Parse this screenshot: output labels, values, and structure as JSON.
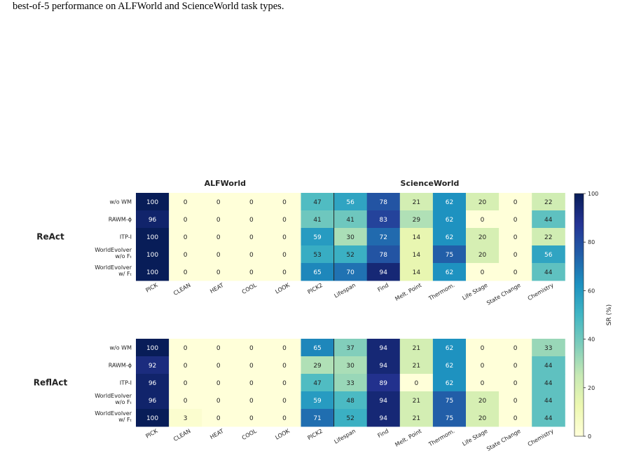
{
  "caption": {
    "text": "best-of-5 performance on ALFWorld and ScienceWorld task types."
  },
  "colors": {
    "colormap": "YlGnBu",
    "stops": [
      "#ffffd9",
      "#edf8b1",
      "#c7e9b4",
      "#7fcdbb",
      "#41b6c4",
      "#1d91c0",
      "#225ea8",
      "#253494",
      "#081d58"
    ]
  },
  "chart_data": {
    "type": "heatmap",
    "group_titles": [
      "ALFWorld",
      "ScienceWorld"
    ],
    "columns": [
      "PICK",
      "CLEAN",
      "HEAT",
      "COOL",
      "LOOK",
      "PICK2",
      "Lifespan",
      "Find",
      "Melt. Point",
      "Thermom.",
      "Life Stage",
      "State Change",
      "Chemistry"
    ],
    "alfworld_columns": 6,
    "colorbar": {
      "label": "SR (%)",
      "ticks": [
        "0",
        "20",
        "40",
        "60",
        "80",
        "100"
      ],
      "range": [
        0,
        100
      ]
    },
    "panels": [
      {
        "name": "ReAct",
        "rows": [
          {
            "label": [
              "w/o WM"
            ],
            "values": [
              100,
              0,
              0,
              0,
              0,
              47,
              56,
              78,
              21,
              62,
              20,
              0,
              22
            ]
          },
          {
            "label": [
              "RAWM-ϕ"
            ],
            "values": [
              96,
              0,
              0,
              0,
              0,
              41,
              41,
              83,
              29,
              62,
              0,
              0,
              44
            ]
          },
          {
            "label": [
              "ITP-I"
            ],
            "values": [
              100,
              0,
              0,
              0,
              0,
              59,
              30,
              72,
              14,
              62,
              20,
              0,
              22
            ]
          },
          {
            "label": [
              "WorldEvolver",
              "w/o Fₜ"
            ],
            "values": [
              100,
              0,
              0,
              0,
              0,
              53,
              52,
              78,
              14,
              75,
              20,
              0,
              56
            ]
          },
          {
            "label": [
              "WorldEvolver",
              "w/ Fₜ"
            ],
            "values": [
              100,
              0,
              0,
              0,
              0,
              65,
              70,
              94,
              14,
              62,
              0,
              0,
              44
            ]
          }
        ]
      },
      {
        "name": "ReflAct",
        "rows": [
          {
            "label": [
              "w/o WM"
            ],
            "values": [
              100,
              0,
              0,
              0,
              0,
              65,
              37,
              94,
              21,
              62,
              0,
              0,
              33
            ]
          },
          {
            "label": [
              "RAWM-ϕ"
            ],
            "values": [
              92,
              0,
              0,
              0,
              0,
              29,
              30,
              94,
              21,
              62,
              0,
              0,
              44
            ]
          },
          {
            "label": [
              "ITP-I"
            ],
            "values": [
              96,
              0,
              0,
              0,
              0,
              47,
              33,
              89,
              0,
              62,
              0,
              0,
              44
            ]
          },
          {
            "label": [
              "WorldEvolver",
              "w/o Fₜ"
            ],
            "values": [
              96,
              0,
              0,
              0,
              0,
              59,
              48,
              94,
              21,
              75,
              20,
              0,
              44
            ]
          },
          {
            "label": [
              "WorldEvolver",
              "w/ Fₜ"
            ],
            "values": [
              100,
              3,
              0,
              0,
              0,
              71,
              52,
              94,
              21,
              75,
              20,
              0,
              44
            ]
          }
        ]
      }
    ]
  }
}
